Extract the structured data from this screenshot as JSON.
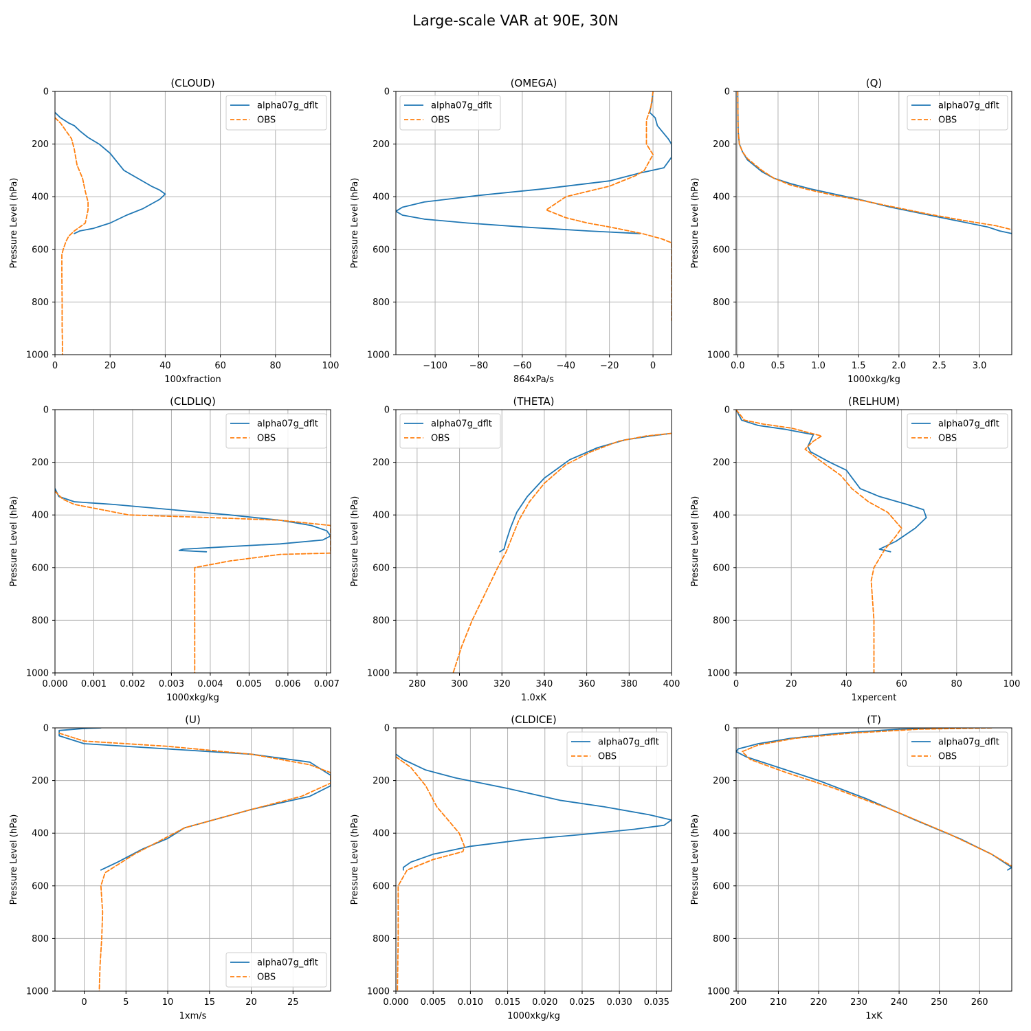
{
  "figure": {
    "title": "Large-scale VAR at 90E, 30N"
  },
  "colors": {
    "model": "#1f77b4",
    "obs": "#ff7f0e"
  },
  "chart_data": [
    {
      "type": "line",
      "title": "(CLOUD)",
      "xlabel": "100xfraction",
      "ylabel": "Pressure Level (hPa)",
      "xlim": [
        0,
        100
      ],
      "ylim": [
        1000,
        0
      ],
      "xticks": [
        0,
        20,
        40,
        60,
        80,
        100
      ],
      "xtick_labels": [
        "0",
        "20",
        "40",
        "60",
        "80",
        "100"
      ],
      "yticks": [
        0,
        200,
        400,
        600,
        800,
        1000
      ],
      "legend": "top-right",
      "series": [
        {
          "name": "alpha07g_dflt",
          "style": "solid",
          "color": "#1f77b4",
          "x": [
            0,
            2,
            5,
            7,
            9,
            12,
            16,
            20,
            25,
            30,
            35,
            38,
            40,
            38,
            32,
            26,
            20,
            14,
            9,
            7,
            8
          ],
          "y": [
            80,
            100,
            120,
            130,
            150,
            175,
            200,
            235,
            300,
            330,
            360,
            375,
            390,
            410,
            445,
            470,
            500,
            520,
            530,
            540,
            535
          ]
        },
        {
          "name": "OBS",
          "style": "dashed",
          "color": "#ff7f0e",
          "x": [
            0,
            2,
            4,
            6,
            7,
            8,
            10,
            11,
            12,
            12,
            11,
            7,
            5,
            4,
            3,
            2.5,
            2.5,
            2.6,
            2.6,
            2.7,
            2.7
          ],
          "y": [
            100,
            120,
            150,
            180,
            220,
            280,
            330,
            380,
            420,
            450,
            500,
            530,
            550,
            570,
            600,
            620,
            700,
            800,
            900,
            950,
            1000
          ]
        }
      ]
    },
    {
      "type": "line",
      "title": "(OMEGA)",
      "xlabel": "864xPa/s",
      "ylabel": "Pressure Level (hPa)",
      "xlim": [
        -118,
        8.5
      ],
      "ylim": [
        1000,
        0
      ],
      "xticks": [
        -100,
        -80,
        -60,
        -40,
        -20,
        0
      ],
      "xtick_labels": [
        "−100",
        "−80",
        "−60",
        "−40",
        "−20",
        "0"
      ],
      "yticks": [
        0,
        200,
        400,
        600,
        800,
        1000
      ],
      "legend": "top-left",
      "series": [
        {
          "name": "alpha07g_dflt",
          "style": "solid",
          "color": "#1f77b4",
          "x": [
            0,
            -0.5,
            -1.5,
            1,
            2,
            7,
            8.5,
            8.5,
            5,
            -6,
            -20,
            -50,
            -80,
            -105,
            -115,
            -118,
            -115,
            -105,
            -85,
            -60,
            -30,
            -6
          ],
          "y": [
            0,
            40,
            80,
            100,
            130,
            180,
            200,
            250,
            290,
            310,
            340,
            370,
            395,
            420,
            440,
            455,
            470,
            485,
            500,
            515,
            530,
            540
          ]
        },
        {
          "name": "OBS",
          "style": "dashed",
          "color": "#ff7f0e",
          "x": [
            0,
            -1,
            -3,
            -3,
            0,
            -2,
            -4,
            -8,
            -14,
            -20,
            -30,
            -40,
            -49,
            -40,
            -30,
            -20,
            -5,
            4,
            8.5,
            8.5,
            8.5
          ],
          "y": [
            0,
            60,
            110,
            200,
            240,
            270,
            300,
            320,
            340,
            360,
            380,
            400,
            450,
            480,
            500,
            515,
            540,
            560,
            575,
            850,
            870
          ]
        }
      ]
    },
    {
      "type": "line",
      "title": "(Q)",
      "xlabel": "1000xkg/kg",
      "ylabel": "Pressure Level (hPa)",
      "xlim": [
        -0.02,
        3.4
      ],
      "ylim": [
        1000,
        0
      ],
      "xticks": [
        0.0,
        0.5,
        1.0,
        1.5,
        2.0,
        2.5,
        3.0
      ],
      "xtick_labels": [
        "0.0",
        "0.5",
        "1.0",
        "1.5",
        "2.0",
        "2.5",
        "3.0"
      ],
      "yticks": [
        0,
        200,
        400,
        600,
        800,
        1000
      ],
      "legend": "top-right",
      "series": [
        {
          "name": "alpha07g_dflt",
          "style": "solid",
          "color": "#1f77b4",
          "x": [
            0,
            0.005,
            0.02,
            0.06,
            0.12,
            0.2,
            0.3,
            0.45,
            0.65,
            0.9,
            1.2,
            1.5,
            1.9,
            2.3,
            2.7,
            3.1,
            3.25,
            3.4
          ],
          "y": [
            0,
            150,
            200,
            230,
            260,
            280,
            305,
            330,
            350,
            370,
            390,
            410,
            440,
            465,
            490,
            515,
            530,
            540
          ]
        },
        {
          "name": "OBS",
          "style": "dashed",
          "color": "#ff7f0e",
          "x": [
            0,
            0.005,
            0.02,
            0.06,
            0.12,
            0.2,
            0.3,
            0.45,
            0.65,
            0.9,
            1.2,
            1.55,
            1.95,
            2.35,
            2.8,
            3.2,
            3.4
          ],
          "y": [
            0,
            150,
            200,
            230,
            255,
            275,
            300,
            330,
            355,
            375,
            395,
            415,
            440,
            465,
            490,
            510,
            525
          ]
        }
      ]
    },
    {
      "type": "line",
      "title": "(CLDLIQ)",
      "xlabel": "1000xkg/kg",
      "ylabel": "Pressure Level (hPa)",
      "xlim": [
        0,
        0.0071
      ],
      "ylim": [
        1000,
        0
      ],
      "xticks": [
        0,
        0.001,
        0.002,
        0.003,
        0.004,
        0.005,
        0.006,
        0.007
      ],
      "xtick_labels": [
        "0.000",
        "0.001",
        "0.002",
        "0.003",
        "0.004",
        "0.005",
        "0.006",
        "0.007"
      ],
      "yticks": [
        0,
        200,
        400,
        600,
        800,
        1000
      ],
      "legend": "top-right",
      "series": [
        {
          "name": "alpha07g_dflt",
          "style": "solid",
          "color": "#1f77b4",
          "x": [
            0,
            0.0001,
            0.0005,
            0.0015,
            0.003,
            0.0045,
            0.0058,
            0.0066,
            0.007,
            0.0071,
            0.0069,
            0.0058,
            0.0045,
            0.0033,
            0.0032,
            0.0039
          ],
          "y": [
            300,
            330,
            350,
            360,
            380,
            400,
            420,
            440,
            460,
            480,
            495,
            510,
            520,
            530,
            535,
            540
          ]
        },
        {
          "name": "OBS",
          "style": "dashed",
          "color": "#ff7f0e",
          "x": [
            0,
            0.0002,
            0.0005,
            0.0012,
            0.0019,
            0.004,
            0.0058,
            0.0071,
            0.0071,
            0.0058,
            0.0045,
            0.0036,
            0.0036,
            0.0036
          ],
          "y": [
            310,
            340,
            360,
            380,
            400,
            410,
            420,
            440,
            545,
            550,
            575,
            600,
            800,
            1000
          ]
        }
      ]
    },
    {
      "type": "line",
      "title": "(THETA)",
      "xlabel": "1.0xK",
      "ylabel": "Pressure Level (hPa)",
      "xlim": [
        270,
        400
      ],
      "ylim": [
        1000,
        0
      ],
      "xticks": [
        280,
        300,
        320,
        340,
        360,
        380,
        400
      ],
      "xtick_labels": [
        "280",
        "300",
        "320",
        "340",
        "360",
        "380",
        "400"
      ],
      "yticks": [
        0,
        200,
        400,
        600,
        800,
        1000
      ],
      "legend": "top-left",
      "series": [
        {
          "name": "alpha07g_dflt",
          "style": "solid",
          "color": "#1f77b4",
          "x": [
            400,
            390,
            378,
            365,
            352,
            340,
            332,
            327,
            324,
            322,
            321,
            319
          ],
          "y": [
            90,
            100,
            115,
            145,
            190,
            260,
            330,
            390,
            450,
            500,
            530,
            540
          ]
        },
        {
          "name": "OBS",
          "style": "dashed",
          "color": "#ff7f0e",
          "x": [
            400,
            388,
            375,
            362,
            350,
            340,
            333,
            328,
            325,
            322,
            318,
            312,
            306,
            301,
            297
          ],
          "y": [
            90,
            100,
            120,
            160,
            210,
            280,
            350,
            420,
            480,
            540,
            600,
            700,
            800,
            900,
            1000
          ]
        }
      ]
    },
    {
      "type": "line",
      "title": "(RELHUM)",
      "xlabel": "1xpercent",
      "ylabel": "Pressure Level (hPa)",
      "xlim": [
        0,
        100
      ],
      "ylim": [
        1000,
        0
      ],
      "xticks": [
        0,
        20,
        40,
        60,
        80,
        100
      ],
      "xtick_labels": [
        "0",
        "20",
        "40",
        "60",
        "80",
        "100"
      ],
      "yticks": [
        0,
        200,
        400,
        600,
        800,
        1000
      ],
      "legend": "top-right",
      "series": [
        {
          "name": "alpha07g_dflt",
          "style": "solid",
          "color": "#1f77b4",
          "x": [
            0,
            2,
            8,
            18,
            28,
            26,
            27,
            34,
            40,
            45,
            52,
            62,
            68,
            69,
            65,
            58,
            52,
            56
          ],
          "y": [
            0,
            40,
            60,
            75,
            95,
            140,
            160,
            200,
            230,
            300,
            330,
            360,
            380,
            410,
            450,
            500,
            530,
            540
          ]
        },
        {
          "name": "OBS",
          "style": "dashed",
          "color": "#ff7f0e",
          "x": [
            0,
            3,
            10,
            20,
            31,
            28,
            25,
            30,
            38,
            42,
            48,
            55,
            60,
            58,
            54,
            50,
            49,
            50,
            50,
            50
          ],
          "y": [
            0,
            40,
            55,
            70,
            100,
            120,
            150,
            190,
            250,
            300,
            350,
            390,
            450,
            480,
            530,
            600,
            650,
            800,
            900,
            1000
          ]
        }
      ]
    },
    {
      "type": "line",
      "title": "(U)",
      "xlabel": "1xm/s",
      "ylabel": "Pressure Level (hPa)",
      "xlim": [
        -3.5,
        29.5
      ],
      "ylim": [
        1000,
        0
      ],
      "xticks": [
        0,
        5,
        10,
        15,
        20,
        25
      ],
      "xtick_labels": [
        "0",
        "5",
        "10",
        "15",
        "20",
        "25"
      ],
      "yticks": [
        0,
        200,
        400,
        600,
        800,
        1000
      ],
      "legend": "bottom-right",
      "series": [
        {
          "name": "alpha07g_dflt",
          "style": "solid",
          "color": "#1f77b4",
          "x": [
            2,
            0,
            -3,
            -3,
            0,
            10,
            20,
            27,
            29.5,
            29.5,
            27,
            20,
            12,
            10,
            7,
            4,
            2
          ],
          "y": [
            0,
            2,
            10,
            30,
            60,
            80,
            100,
            130,
            180,
            220,
            260,
            310,
            380,
            420,
            460,
            510,
            540
          ]
        },
        {
          "name": "OBS",
          "style": "dashed",
          "color": "#ff7f0e",
          "x": [
            -3,
            0,
            10,
            20,
            27,
            29.5,
            29.5,
            26,
            20,
            12,
            9,
            6,
            4,
            2.5,
            2,
            2.2,
            2.1,
            1.9,
            1.8
          ],
          "y": [
            20,
            50,
            70,
            100,
            140,
            170,
            210,
            260,
            310,
            380,
            430,
            480,
            520,
            550,
            600,
            700,
            800,
            900,
            1000
          ]
        }
      ]
    },
    {
      "type": "line",
      "title": "(CLDICE)",
      "xlabel": "1000xkg/kg",
      "ylabel": "Pressure Level (hPa)",
      "xlim": [
        0,
        0.037
      ],
      "ylim": [
        1000,
        0
      ],
      "xticks": [
        0,
        0.005,
        0.01,
        0.015,
        0.02,
        0.025,
        0.03,
        0.035
      ],
      "xtick_labels": [
        "0.000",
        "0.005",
        "0.010",
        "0.015",
        "0.020",
        "0.025",
        "0.030",
        "0.035"
      ],
      "yticks": [
        0,
        200,
        400,
        600,
        800,
        1000
      ],
      "legend": "top-right",
      "series": [
        {
          "name": "alpha07g_dflt",
          "style": "solid",
          "color": "#1f77b4",
          "x": [
            0,
            0.001,
            0.004,
            0.008,
            0.015,
            0.022,
            0.028,
            0.034,
            0.037,
            0.036,
            0.032,
            0.025,
            0.017,
            0.01,
            0.005,
            0.002,
            0.001,
            0.001
          ],
          "y": [
            100,
            120,
            160,
            190,
            230,
            275,
            300,
            330,
            350,
            370,
            385,
            405,
            425,
            450,
            480,
            510,
            530,
            540
          ]
        },
        {
          "name": "OBS",
          "style": "dashed",
          "color": "#ff7f0e",
          "x": [
            0,
            0.002,
            0.004,
            0.0055,
            0.007,
            0.0085,
            0.0092,
            0.009,
            0.005,
            0.0015,
            0.0003,
            0.0003,
            0.0002
          ],
          "y": [
            110,
            150,
            220,
            300,
            350,
            400,
            450,
            470,
            500,
            540,
            600,
            800,
            1000
          ]
        }
      ]
    },
    {
      "type": "line",
      "title": "(T)",
      "xlabel": "1xK",
      "ylabel": "Pressure Level (hPa)",
      "xlim": [
        199.5,
        268
      ],
      "ylim": [
        1000,
        0
      ],
      "xticks": [
        200,
        210,
        220,
        230,
        240,
        250,
        260
      ],
      "xtick_labels": [
        "200",
        "210",
        "220",
        "230",
        "240",
        "250",
        "260"
      ],
      "yticks": [
        0,
        200,
        400,
        600,
        800,
        1000
      ],
      "legend": "top-right",
      "series": [
        {
          "name": "alpha07g_dflt",
          "style": "solid",
          "color": "#1f77b4",
          "x": [
            253,
            240,
            225,
            213,
            205,
            200,
            199.5,
            202,
            210,
            220,
            232,
            244,
            255,
            263,
            268,
            267
          ],
          "y": [
            0,
            5,
            20,
            40,
            60,
            80,
            90,
            110,
            150,
            200,
            270,
            350,
            420,
            480,
            530,
            540
          ]
        },
        {
          "name": "OBS",
          "style": "dashed",
          "color": "#ff7f0e",
          "x": [
            263,
            245,
            228,
            214,
            205,
            201,
            203,
            212,
            224,
            238,
            252,
            263,
            268
          ],
          "y": [
            0,
            5,
            20,
            40,
            65,
            90,
            120,
            170,
            230,
            310,
            400,
            480,
            525
          ]
        }
      ]
    }
  ]
}
